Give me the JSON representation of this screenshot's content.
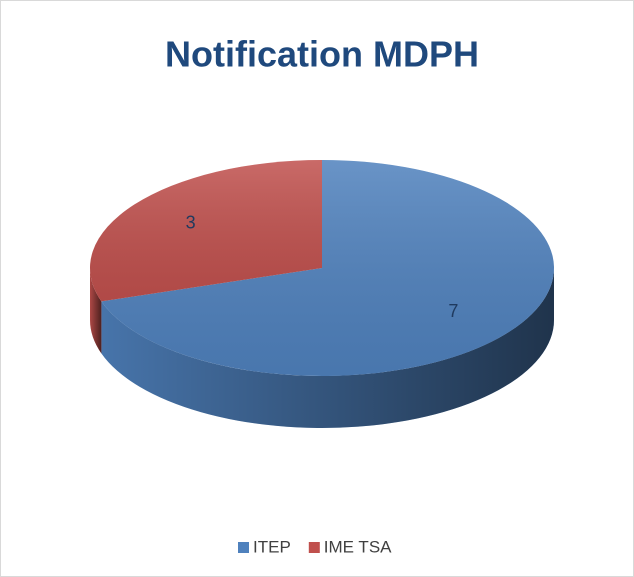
{
  "chart_data": {
    "type": "pie",
    "title": "Notification MDPH",
    "categories": [
      "ITEP",
      "IME TSA"
    ],
    "values": [
      7,
      3
    ],
    "colors": [
      "#4f81bd",
      "#c0504d"
    ],
    "legend": "bottom",
    "three_d": true
  }
}
